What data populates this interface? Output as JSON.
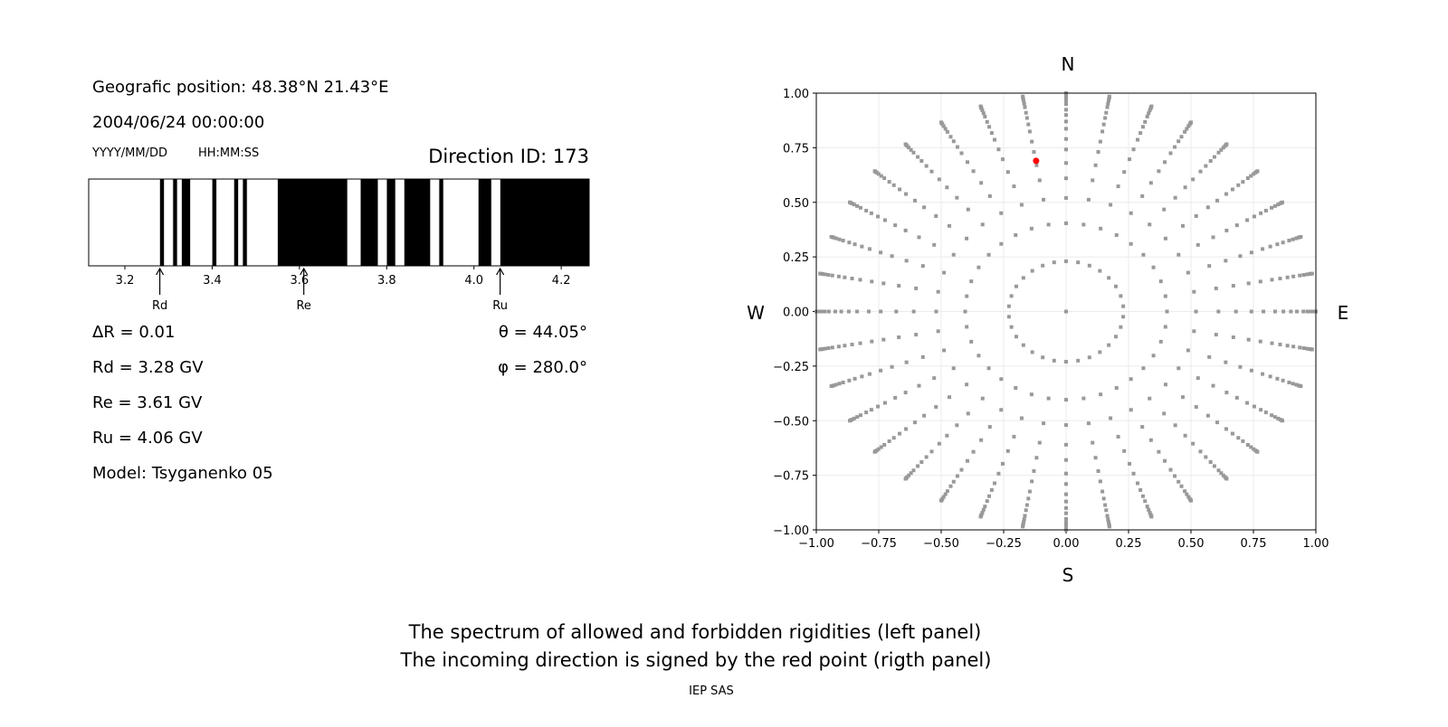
{
  "left_panel": {
    "position": "Geografic position: 48.38°N 21.43°E",
    "datetime": "2004/06/24 00:00:00",
    "date_format": "YYYY/MM/DD",
    "time_format": "HH:MM:SS",
    "direction_id": "Direction ID: 173",
    "delta_r": "ΔR = 0.01",
    "rd": "Rd = 3.28 GV",
    "re": "Re = 3.61 GV",
    "ru": "Ru = 4.06 GV",
    "model": "Model: Tsyganenko 05",
    "theta": "θ = 44.05°",
    "phi": "φ = 280.0°"
  },
  "footer": {
    "line1": "The spectrum of allowed and forbidden rigidities (left panel)",
    "line2": "The incoming direction is signed by the red point (rigth panel)",
    "credit": "IEP SAS"
  },
  "chart_data": [
    {
      "type": "bar",
      "description_of_marks": "rigidity spectrum; black = forbidden, white = allowed",
      "xlim": [
        3.117,
        4.264
      ],
      "xticks": [
        "3.2",
        "3.4",
        "3.6",
        "3.8",
        "4.0",
        "4.2"
      ],
      "forbidden_bands": [
        [
          3.28,
          3.29
        ],
        [
          3.31,
          3.32
        ],
        [
          3.33,
          3.35
        ],
        [
          3.4,
          3.41
        ],
        [
          3.45,
          3.46
        ],
        [
          3.47,
          3.48
        ],
        [
          3.55,
          3.71
        ],
        [
          3.74,
          3.78
        ],
        [
          3.8,
          3.82
        ],
        [
          3.84,
          3.9
        ],
        [
          3.92,
          3.93
        ],
        [
          4.01,
          4.04
        ],
        [
          4.06,
          4.264
        ]
      ],
      "markers": [
        {
          "label": "Rd",
          "x": 3.28
        },
        {
          "label": "Re",
          "x": 3.61
        },
        {
          "label": "Ru",
          "x": 4.06
        }
      ],
      "colors": {
        "forbidden": "#000000",
        "allowed": "#ffffff"
      }
    },
    {
      "type": "scatter",
      "xlim": [
        -1,
        1
      ],
      "ylim": [
        -1,
        1
      ],
      "xticks": [
        "−1.00",
        "−0.75",
        "−0.50",
        "−0.25",
        "0.00",
        "0.25",
        "0.50",
        "0.75",
        "1.00"
      ],
      "yticks": [
        "−1.00",
        "−0.75",
        "−0.50",
        "−0.25",
        "0.00",
        "0.25",
        "0.50",
        "0.75",
        "1.00"
      ],
      "grid": true,
      "compass": {
        "north": "N",
        "south": "S",
        "west": "W",
        "east": "E"
      },
      "direction_grid": {
        "center": [
          0,
          0
        ],
        "inner_ring_radius": 0.23,
        "inner_ring_points": 30,
        "ray_azimuth_step_deg": 10,
        "ray_radii": [
          0.404,
          0.52,
          0.61,
          0.68,
          0.742,
          0.79,
          0.837,
          0.87,
          0.9,
          0.924,
          0.95,
          0.966,
          0.98,
          0.99,
          0.996,
          1.0
        ]
      },
      "highlight_point": {
        "x": -0.12,
        "y": 0.69
      },
      "colors": {
        "points": "#999999",
        "highlight": "#ff0000",
        "grid": "#ebebeb"
      }
    }
  ]
}
